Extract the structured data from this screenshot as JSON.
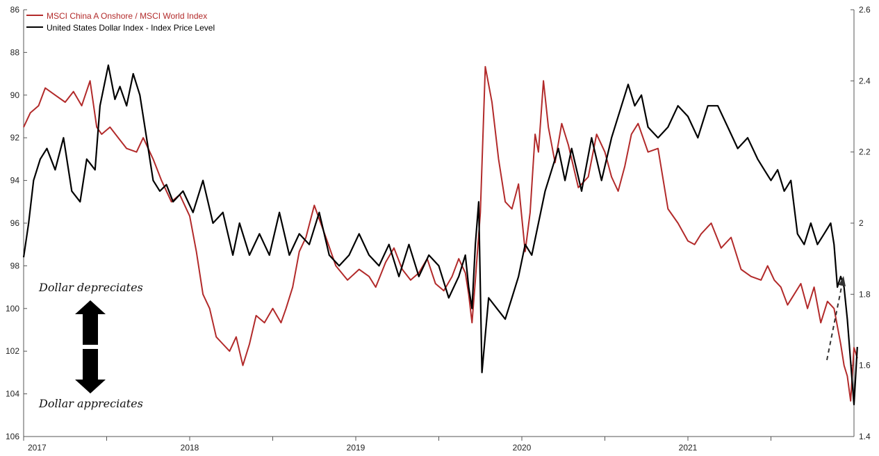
{
  "chart_data": {
    "type": "line",
    "title": "",
    "legend": {
      "placement": "top-left",
      "entries": [
        {
          "label": "MSCI China A Onshore / MSCI World Index",
          "color": "#b22a2a",
          "axis": "right"
        },
        {
          "label": "United States Dollar Index - Index Price Level",
          "color": "#000000",
          "axis": "left-inverted"
        }
      ]
    },
    "x_axis": {
      "ticks": [
        "2017",
        "2018",
        "2019",
        "2020",
        "2021"
      ],
      "range": [
        2017.0,
        2022.0
      ]
    },
    "y_left": {
      "inverted": true,
      "range": [
        86,
        106
      ],
      "ticks": [
        "86",
        "88",
        "90",
        "92",
        "94",
        "96",
        "98",
        "100",
        "102",
        "104",
        "106"
      ]
    },
    "y_right": {
      "range": [
        1.4,
        2.6
      ],
      "ticks": [
        "2.6",
        "2.4",
        "2.2",
        "2",
        "1.8",
        "1.6",
        "1.4"
      ]
    },
    "series": [
      {
        "name": "MSCI China A Onshore / MSCI World Index",
        "color": "#b22a2a",
        "axis": "right",
        "x": [
          2017.0,
          2017.04,
          2017.09,
          2017.13,
          2017.19,
          2017.25,
          2017.3,
          2017.35,
          2017.4,
          2017.44,
          2017.47,
          2017.52,
          2017.57,
          2017.62,
          2017.68,
          2017.72,
          2017.78,
          2017.83,
          2017.89,
          2017.94,
          2018.0,
          2018.04,
          2018.08,
          2018.12,
          2018.16,
          2018.2,
          2018.24,
          2018.28,
          2018.32,
          2018.36,
          2018.4,
          2018.45,
          2018.5,
          2018.55,
          2018.58,
          2018.62,
          2018.66,
          2018.7,
          2018.75,
          2018.82,
          2018.88,
          2018.95,
          2019.02,
          2019.08,
          2019.12,
          2019.18,
          2019.23,
          2019.28,
          2019.33,
          2019.38,
          2019.43,
          2019.48,
          2019.53,
          2019.58,
          2019.62,
          2019.66,
          2019.68,
          2019.7,
          2019.72,
          2019.75,
          2019.78,
          2019.82,
          2019.86,
          2019.9,
          2019.94,
          2019.98,
          2020.02,
          2020.05,
          2020.08,
          2020.1,
          2020.13,
          2020.16,
          2020.2,
          2020.24,
          2020.28,
          2020.34,
          2020.4,
          2020.45,
          2020.5,
          2020.54,
          2020.58,
          2020.62,
          2020.66,
          2020.7,
          2020.76,
          2020.82,
          2020.88,
          2020.94,
          2021.0,
          2021.04,
          2021.08,
          2021.14,
          2021.2,
          2021.26,
          2021.32,
          2021.38,
          2021.44,
          2021.48,
          2021.52,
          2021.56,
          2021.6,
          2021.64,
          2021.68,
          2021.72,
          2021.76,
          2021.8,
          2021.84,
          2021.88,
          2021.92,
          2021.94,
          2021.96,
          2021.98,
          2022.0,
          2022.02
        ],
        "y": [
          2.27,
          2.31,
          2.33,
          2.38,
          2.36,
          2.34,
          2.37,
          2.33,
          2.4,
          2.27,
          2.25,
          2.27,
          2.24,
          2.21,
          2.2,
          2.24,
          2.18,
          2.12,
          2.06,
          2.08,
          2.02,
          1.92,
          1.8,
          1.76,
          1.68,
          1.66,
          1.64,
          1.68,
          1.6,
          1.66,
          1.74,
          1.72,
          1.76,
          1.72,
          1.76,
          1.82,
          1.92,
          1.96,
          2.05,
          1.96,
          1.88,
          1.84,
          1.87,
          1.85,
          1.82,
          1.89,
          1.93,
          1.87,
          1.84,
          1.86,
          1.9,
          1.83,
          1.81,
          1.85,
          1.9,
          1.86,
          1.8,
          1.72,
          1.84,
          2.03,
          2.44,
          2.34,
          2.18,
          2.06,
          2.04,
          2.11,
          1.92,
          2.03,
          2.25,
          2.2,
          2.4,
          2.27,
          2.17,
          2.28,
          2.22,
          2.1,
          2.13,
          2.25,
          2.2,
          2.13,
          2.09,
          2.16,
          2.25,
          2.28,
          2.2,
          2.21,
          2.04,
          2.0,
          1.95,
          1.94,
          1.97,
          2.0,
          1.93,
          1.96,
          1.87,
          1.85,
          1.84,
          1.88,
          1.84,
          1.82,
          1.77,
          1.8,
          1.83,
          1.76,
          1.82,
          1.72,
          1.78,
          1.76,
          1.66,
          1.6,
          1.57,
          1.5,
          1.65,
          1.62
        ]
      },
      {
        "name": "United States Dollar Index - Index Price Level",
        "color": "#000000",
        "axis": "left-inverted",
        "x": [
          2017.0,
          2017.03,
          2017.06,
          2017.1,
          2017.14,
          2017.19,
          2017.24,
          2017.29,
          2017.34,
          2017.38,
          2017.43,
          2017.46,
          2017.51,
          2017.55,
          2017.58,
          2017.62,
          2017.66,
          2017.7,
          2017.74,
          2017.78,
          2017.82,
          2017.86,
          2017.9,
          2017.96,
          2018.02,
          2018.08,
          2018.14,
          2018.2,
          2018.26,
          2018.3,
          2018.36,
          2018.42,
          2018.48,
          2018.54,
          2018.6,
          2018.66,
          2018.72,
          2018.78,
          2018.84,
          2018.9,
          2018.96,
          2019.02,
          2019.08,
          2019.14,
          2019.2,
          2019.26,
          2019.32,
          2019.38,
          2019.44,
          2019.5,
          2019.56,
          2019.62,
          2019.66,
          2019.68,
          2019.7,
          2019.72,
          2019.74,
          2019.76,
          2019.8,
          2019.85,
          2019.9,
          2019.94,
          2019.98,
          2020.02,
          2020.06,
          2020.1,
          2020.14,
          2020.18,
          2020.22,
          2020.26,
          2020.3,
          2020.36,
          2020.42,
          2020.48,
          2020.54,
          2020.6,
          2020.64,
          2020.68,
          2020.72,
          2020.76,
          2020.82,
          2020.88,
          2020.94,
          2021.0,
          2021.06,
          2021.12,
          2021.18,
          2021.24,
          2021.3,
          2021.36,
          2021.42,
          2021.46,
          2021.5,
          2021.54,
          2021.58,
          2021.62,
          2021.66,
          2021.7,
          2021.74,
          2021.78,
          2021.82,
          2021.86,
          2021.88,
          2021.9,
          2021.92,
          2021.94,
          2021.96,
          2021.98,
          2022.0,
          2022.02
        ],
        "y": [
          97.6,
          96.0,
          94.0,
          93.0,
          92.5,
          93.5,
          92.0,
          94.5,
          95.0,
          93.0,
          93.5,
          90.5,
          88.6,
          90.2,
          89.6,
          90.5,
          89.0,
          90.0,
          92.0,
          94.0,
          94.5,
          94.2,
          95.0,
          94.5,
          95.5,
          94.0,
          96.0,
          95.5,
          97.5,
          96.0,
          97.5,
          96.5,
          97.5,
          95.5,
          97.5,
          96.5,
          97.0,
          95.5,
          97.5,
          98.0,
          97.5,
          96.5,
          97.5,
          98.0,
          97.0,
          98.5,
          97.0,
          98.5,
          97.5,
          98.0,
          99.5,
          98.5,
          97.5,
          99.0,
          100.0,
          97.0,
          95.0,
          103.0,
          99.5,
          100.0,
          100.5,
          99.5,
          98.5,
          97.0,
          97.5,
          96.0,
          94.5,
          93.5,
          92.5,
          94.0,
          92.5,
          94.5,
          92.0,
          94.0,
          92.0,
          90.5,
          89.5,
          90.5,
          90.0,
          91.5,
          92.0,
          91.5,
          90.5,
          91.0,
          92.0,
          90.5,
          90.5,
          91.5,
          92.5,
          92.0,
          93.0,
          93.5,
          94.0,
          93.5,
          94.5,
          94.0,
          96.5,
          97.0,
          96.0,
          97.0,
          96.5,
          96.0,
          97.0,
          99.0,
          98.5,
          99.0,
          100.5,
          102.5,
          104.5,
          101.8
        ]
      }
    ],
    "annotations": [
      {
        "text": "Dollar depreciates"
      },
      {
        "text": "Dollar appreciates"
      }
    ]
  }
}
